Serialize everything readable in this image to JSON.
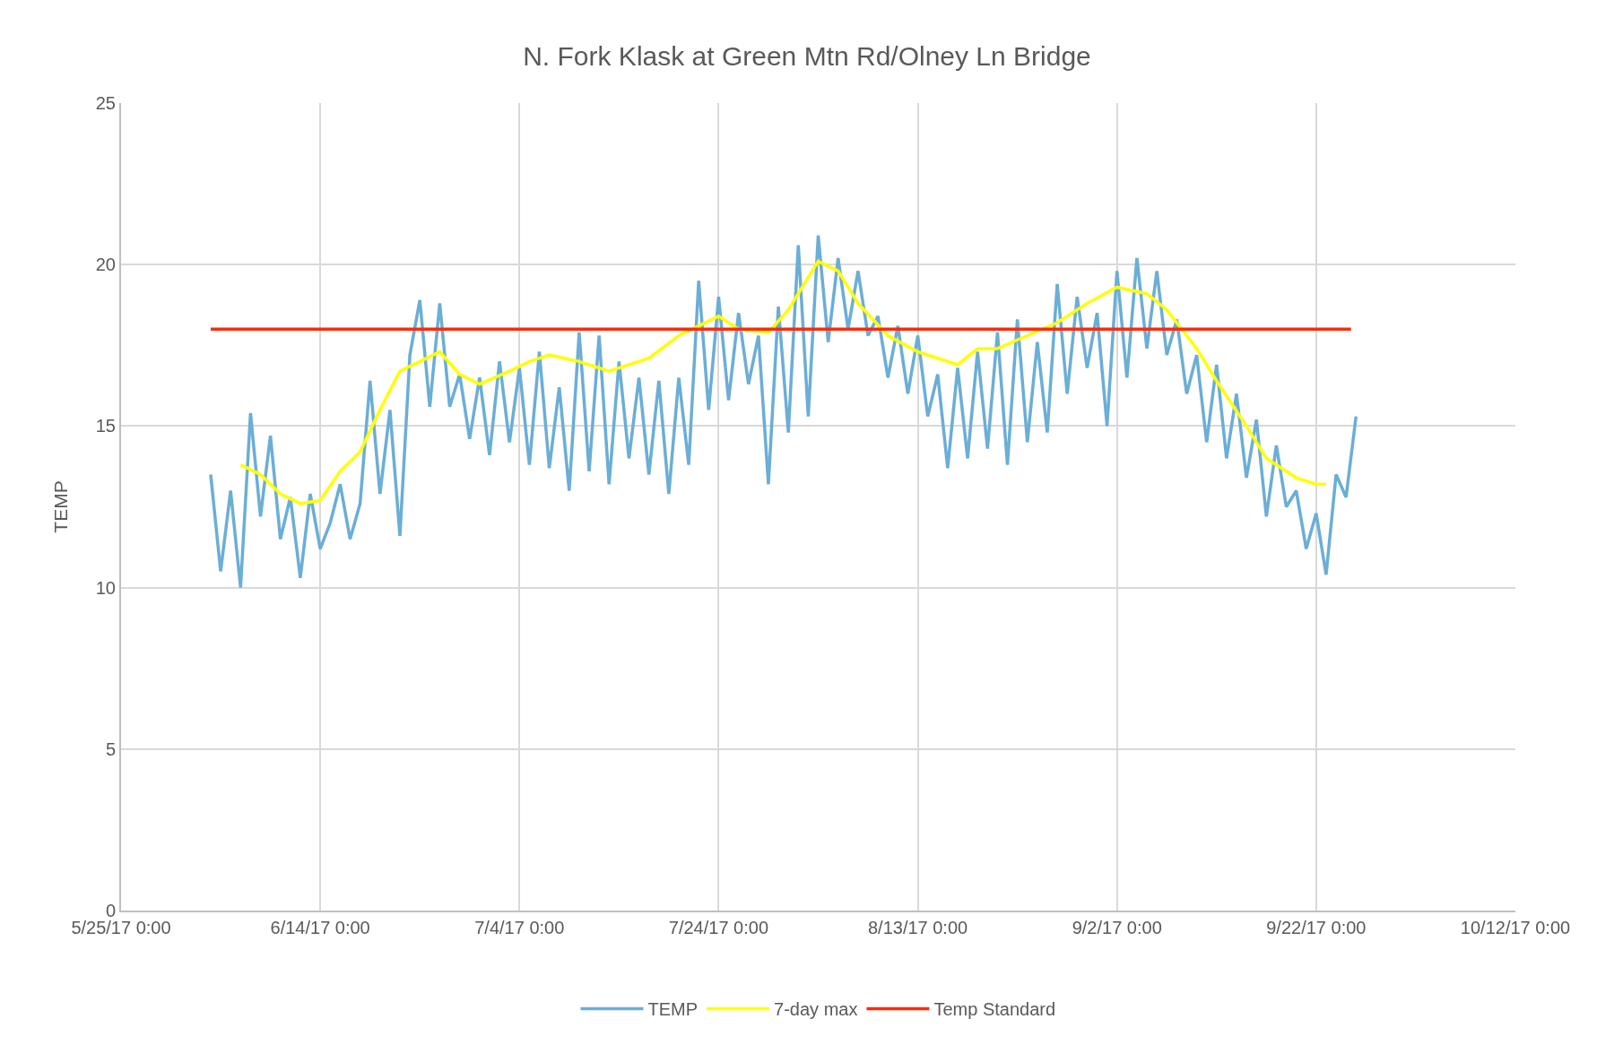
{
  "chart_data": {
    "type": "line",
    "title": "N. Fork Klask at Green Mtn Rd/Olney Ln Bridge",
    "ylabel": "TEMP",
    "xlim": [
      "2017-05-25",
      "2017-10-12"
    ],
    "xticks": [
      {
        "value": "2017-05-25",
        "label": "5/25/17 0:00"
      },
      {
        "value": "2017-06-14",
        "label": "6/14/17 0:00"
      },
      {
        "value": "2017-07-04",
        "label": "7/4/17 0:00"
      },
      {
        "value": "2017-07-24",
        "label": "7/24/17 0:00"
      },
      {
        "value": "2017-08-13",
        "label": "8/13/17 0:00"
      },
      {
        "value": "2017-09-02",
        "label": "9/2/17 0:00"
      },
      {
        "value": "2017-09-22",
        "label": "9/22/17 0:00"
      },
      {
        "value": "2017-10-12",
        "label": "10/12/17 0:00"
      }
    ],
    "ylim": [
      0,
      25
    ],
    "yticks": [
      0,
      5,
      10,
      15,
      20,
      25
    ],
    "grid": true,
    "legend": "bottom",
    "marker": "none",
    "line_style": "solid",
    "series": [
      {
        "name": "TEMP",
        "color": "#6baed6",
        "x": [
          "2017-06-03",
          "2017-06-04",
          "2017-06-05",
          "2017-06-06",
          "2017-06-07",
          "2017-06-08",
          "2017-06-09",
          "2017-06-10",
          "2017-06-11",
          "2017-06-12",
          "2017-06-13",
          "2017-06-14",
          "2017-06-15",
          "2017-06-16",
          "2017-06-17",
          "2017-06-18",
          "2017-06-19",
          "2017-06-20",
          "2017-06-21",
          "2017-06-22",
          "2017-06-23",
          "2017-06-24",
          "2017-06-25",
          "2017-06-26",
          "2017-06-27",
          "2017-06-28",
          "2017-06-29",
          "2017-06-30",
          "2017-07-01",
          "2017-07-02",
          "2017-07-03",
          "2017-07-04",
          "2017-07-05",
          "2017-07-06",
          "2017-07-07",
          "2017-07-08",
          "2017-07-09",
          "2017-07-10",
          "2017-07-11",
          "2017-07-12",
          "2017-07-13",
          "2017-07-14",
          "2017-07-15",
          "2017-07-16",
          "2017-07-17",
          "2017-07-18",
          "2017-07-19",
          "2017-07-20",
          "2017-07-21",
          "2017-07-22",
          "2017-07-23",
          "2017-07-24",
          "2017-07-25",
          "2017-07-26",
          "2017-07-27",
          "2017-07-28",
          "2017-07-29",
          "2017-07-30",
          "2017-07-31",
          "2017-08-01",
          "2017-08-02",
          "2017-08-03",
          "2017-08-04",
          "2017-08-05",
          "2017-08-06",
          "2017-08-07",
          "2017-08-08",
          "2017-08-09",
          "2017-08-10",
          "2017-08-11",
          "2017-08-12",
          "2017-08-13",
          "2017-08-14",
          "2017-08-15",
          "2017-08-16",
          "2017-08-17",
          "2017-08-18",
          "2017-08-19",
          "2017-08-20",
          "2017-08-21",
          "2017-08-22",
          "2017-08-23",
          "2017-08-24",
          "2017-08-25",
          "2017-08-26",
          "2017-08-27",
          "2017-08-28",
          "2017-08-29",
          "2017-08-30",
          "2017-08-31",
          "2017-09-01",
          "2017-09-02",
          "2017-09-03",
          "2017-09-04",
          "2017-09-05",
          "2017-09-06",
          "2017-09-07",
          "2017-09-08",
          "2017-09-09",
          "2017-09-10",
          "2017-09-11",
          "2017-09-12",
          "2017-09-13",
          "2017-09-14",
          "2017-09-15",
          "2017-09-16",
          "2017-09-17",
          "2017-09-18",
          "2017-09-19",
          "2017-09-20",
          "2017-09-21",
          "2017-09-22",
          "2017-09-23",
          "2017-09-24",
          "2017-09-25",
          "2017-09-26"
        ],
        "values": [
          13.5,
          10.5,
          13.0,
          10.0,
          15.4,
          12.2,
          14.7,
          11.5,
          12.8,
          10.3,
          12.9,
          11.2,
          12.0,
          13.2,
          11.5,
          12.6,
          16.4,
          12.9,
          15.5,
          11.6,
          17.2,
          18.9,
          15.6,
          18.8,
          15.6,
          16.6,
          14.6,
          16.5,
          14.1,
          17.0,
          14.5,
          16.8,
          13.8,
          17.3,
          13.7,
          16.2,
          13.0,
          17.9,
          13.6,
          17.8,
          13.2,
          17.0,
          14.0,
          16.5,
          13.5,
          16.4,
          12.9,
          16.5,
          13.8,
          19.5,
          15.5,
          19.0,
          15.8,
          18.5,
          16.3,
          17.8,
          13.2,
          18.7,
          14.8,
          20.6,
          15.3,
          20.9,
          17.6,
          20.2,
          18.0,
          19.8,
          17.8,
          18.4,
          16.5,
          18.1,
          16.0,
          17.8,
          15.3,
          16.6,
          13.7,
          16.8,
          14.0,
          17.3,
          14.3,
          17.9,
          13.8,
          18.3,
          14.5,
          17.6,
          14.8,
          19.4,
          16.0,
          19.0,
          16.8,
          18.5,
          15.0,
          19.8,
          16.5,
          20.2,
          17.4,
          19.8,
          17.2,
          18.3,
          16.0,
          17.2,
          14.5,
          16.9,
          14.0,
          16.0,
          13.4,
          15.2,
          12.2,
          14.4,
          12.5,
          13.0,
          11.2,
          12.3,
          10.4,
          13.5,
          12.8,
          15.3
        ]
      },
      {
        "name": "7-day max",
        "color": "#ffff00",
        "x": [
          "2017-06-06",
          "2017-06-08",
          "2017-06-10",
          "2017-06-12",
          "2017-06-14",
          "2017-06-16",
          "2017-06-18",
          "2017-06-20",
          "2017-06-22",
          "2017-06-24",
          "2017-06-26",
          "2017-06-28",
          "2017-06-30",
          "2017-07-03",
          "2017-07-05",
          "2017-07-07",
          "2017-07-10",
          "2017-07-13",
          "2017-07-17",
          "2017-07-20",
          "2017-07-24",
          "2017-07-26",
          "2017-07-29",
          "2017-07-31",
          "2017-08-03",
          "2017-08-05",
          "2017-08-07",
          "2017-08-10",
          "2017-08-13",
          "2017-08-17",
          "2017-08-19",
          "2017-08-21",
          "2017-08-24",
          "2017-08-27",
          "2017-08-30",
          "2017-09-02",
          "2017-09-05",
          "2017-09-07",
          "2017-09-10",
          "2017-09-12",
          "2017-09-15",
          "2017-09-17",
          "2017-09-20",
          "2017-09-22",
          "2017-09-23"
        ],
        "values": [
          13.8,
          13.5,
          12.9,
          12.6,
          12.7,
          13.6,
          14.2,
          15.5,
          16.7,
          17.0,
          17.3,
          16.6,
          16.3,
          16.7,
          17.0,
          17.2,
          17.0,
          16.7,
          17.1,
          17.8,
          18.4,
          18.0,
          17.9,
          18.6,
          20.1,
          19.8,
          18.8,
          17.8,
          17.3,
          16.9,
          17.4,
          17.4,
          17.8,
          18.2,
          18.8,
          19.3,
          19.1,
          18.6,
          17.4,
          16.4,
          15.0,
          14.0,
          13.4,
          13.2,
          13.2
        ]
      },
      {
        "name": "Temp Standard",
        "color": "#ff2a0a",
        "x": [
          "2017-06-03",
          "2017-09-25T12:00"
        ],
        "values": [
          18,
          18
        ]
      }
    ]
  }
}
